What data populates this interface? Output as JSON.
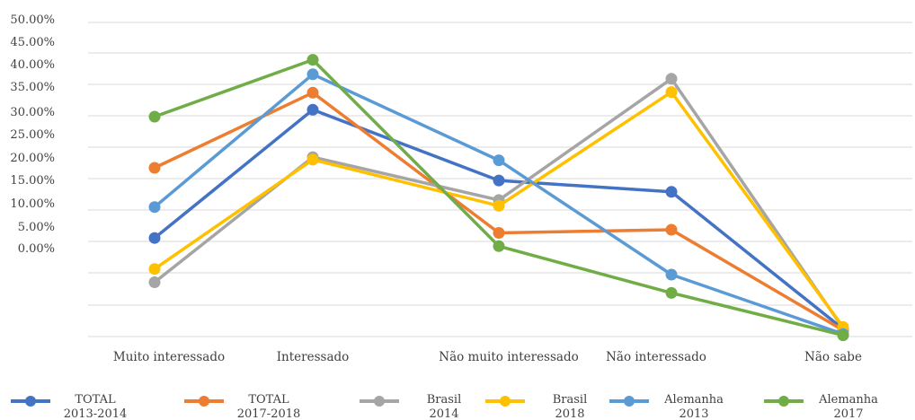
{
  "chart_data": {
    "type": "line",
    "categories": [
      "Muito interessado",
      "Interessado",
      "Não muito interessado",
      "Não interessado",
      "Não sabe"
    ],
    "y_tick_labels": [
      "50.00%",
      "45.00%",
      "40.00%",
      "35.00%",
      "30.00%",
      "25.00%",
      "20.00%",
      "15.00%",
      "10.00%",
      "5.00%",
      "0.00%"
    ],
    "ylim": [
      0,
      50
    ],
    "grid": true,
    "legend_position": "bottom",
    "series": [
      {
        "name": "TOTAL 2013-2014",
        "legend_lines": [
          "TOTAL",
          "2013-2014"
        ],
        "color": "#4472C4",
        "values": [
          15.6,
          35.9,
          24.7,
          22.9,
          1.2
        ]
      },
      {
        "name": "TOTAL 2017-2018",
        "legend_lines": [
          "TOTAL",
          "2017-2018"
        ],
        "color": "#ED7D31",
        "values": [
          26.7,
          38.6,
          16.4,
          16.9,
          1.0
        ]
      },
      {
        "name": "Brasil 2014",
        "legend_lines": [
          "Brasil",
          "2014"
        ],
        "color": "#A5A5A5",
        "values": [
          8.6,
          28.4,
          21.6,
          40.8,
          1.3
        ]
      },
      {
        "name": "Brasil 2018",
        "legend_lines": [
          "Brasil",
          "2018"
        ],
        "color": "#FFC000",
        "values": [
          10.7,
          28.0,
          20.7,
          38.7,
          1.5
        ]
      },
      {
        "name": "Alemanha 2013",
        "legend_lines": [
          "Alemanha",
          "2013"
        ],
        "color": "#5B9BD5",
        "values": [
          20.5,
          41.5,
          27.9,
          9.8,
          0.4
        ]
      },
      {
        "name": "Alemanha 2017",
        "legend_lines": [
          "Alemanha",
          "2017"
        ],
        "color": "#70AD47",
        "values": [
          34.8,
          43.8,
          14.3,
          6.9,
          0.2
        ]
      }
    ]
  }
}
